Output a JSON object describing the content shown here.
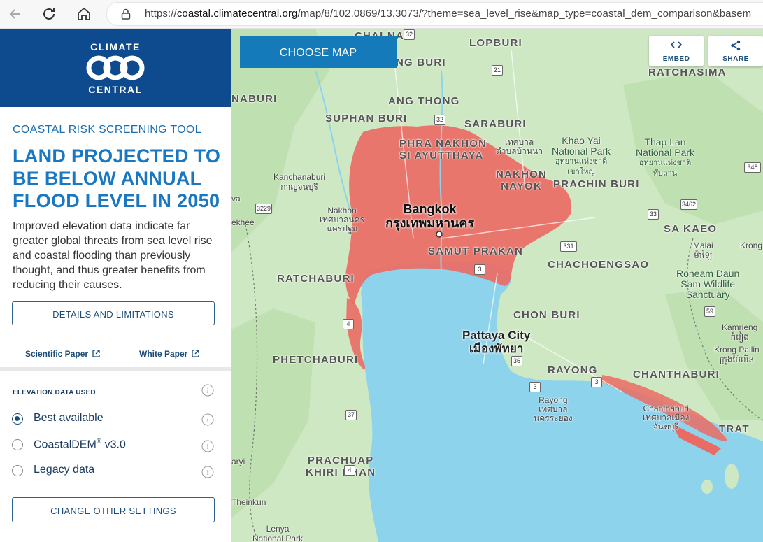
{
  "browser": {
    "url_host": "coastal.climatecentral.org",
    "url_prefix": "https://",
    "url_path": "/map/8/102.0869/13.3073/?theme=sea_level_rise&map_type=coastal_dem_comparison&basem"
  },
  "brand": {
    "line1": "CLIMATE",
    "line2": "CENTRAL"
  },
  "sidebar": {
    "tool_label": "COASTAL RISK SCREENING TOOL",
    "headline": "LAND PROJECTED TO BE BELOW ANNUAL FLOOD LEVEL IN 2050",
    "description": "Improved elevation data indicate far greater global threats from sea level rise and coastal flooding than previously thought, and thus greater benefits from reducing their causes.",
    "details_button": "DETAILS AND LIMITATIONS",
    "links": [
      "Scientific Paper",
      "White Paper"
    ],
    "elevation_label": "ELEVATION DATA USED",
    "options": [
      {
        "label": "Best available",
        "selected": true
      },
      {
        "label": "CoastalDEM",
        "sup": "®",
        "suffix": " v3.0",
        "selected": false
      },
      {
        "label": "Legacy data",
        "selected": false
      }
    ],
    "settings_button": "CHANGE OTHER SETTINGS"
  },
  "map": {
    "choose_map": "CHOOSE MAP",
    "embed": "EMBED",
    "share": "SHARE",
    "colors": {
      "land": "#cfe8c4",
      "water": "#8dd3ec",
      "flood": "#ea6b64",
      "accent": "#147ab9"
    },
    "labels": {
      "chainat": "CHAI NAT",
      "lopburi": "LOPBURI",
      "singburi": "NG BURI",
      "ratchasima": "RATCHASIMA",
      "naburi": "NABURI",
      "angthong": "ANG THONG",
      "suphanburi": "SUPHAN BURI",
      "saraburi": "SARABURI",
      "ayutthaya1": "PHRA NAKHON",
      "ayutthaya2": "SI AYUTTHAYA",
      "tessaban1": "เทศบาล",
      "tessaban2": "ตำบลบ้านนา",
      "khaoyai1": "Khao Yai",
      "khaoyai2": "National Park",
      "khaoyai3": "อุทยานแห่งชาติ",
      "khaoyai4": "เขาใหญ่",
      "thaplan1": "Thap Lan",
      "thaplan2": "National Park",
      "thaplan3": "อุทยานแห่งชาติ",
      "thaplan4": "ทับลาน",
      "nakhonnayok1": "NAKHON",
      "nakhonnayok2": "NAYOK",
      "prachinburi": "PRACHIN BURI",
      "kanchanaburi1": "Kanchanaburi",
      "kanchanaburi2": "กาญจนบุรี",
      "bangkok1": "Bangkok",
      "bangkok2": "กรุงเทพมหานคร",
      "nakhonpathom1": "Nakhon",
      "nakhonpathom2": "เทศบาลนคร",
      "nakhonpathom3": "นครปฐม",
      "samutprakan": "SAMUT PRAKAN",
      "sakaeo": "SA KAEO",
      "kekhee": "ekhee",
      "ava": "va",
      "malai1": "Malai",
      "malai2": "ម៉ាឡៃ",
      "krong1": "Krong",
      "chachoengsao": "CHACHOENGSAO",
      "ratchaburi": "RATCHABURI",
      "roneam1": "Roneam Daun",
      "roneam2": "Sam Wildlife",
      "roneam3": "Sanctuary",
      "chonburi": "CHON BURI",
      "kamrieng1": "Kamrieng",
      "kamrieng2": "កំរៀង",
      "pattaya1": "Pattaya City",
      "pattaya2": "เมืองพัทยา",
      "phetchaburi": "PHETCHABURI",
      "krongpailin1": "Krong Pailin",
      "krongpailin2": "ក្រុងប៉ៃលិន",
      "rayong": "RAYONG",
      "chanthaburi": "CHANTHABURI",
      "rayongtown1": "Rayong",
      "rayongtown2": "เทศบาล",
      "rayongtown3": "นครระยอง",
      "chanthtown1": "Chanthaburi",
      "chanthtown2": "เทศบาลเมือง",
      "chanthtown3": "จันทบุรี",
      "trat": "TRAT",
      "prachuap1": "PRACHUAP",
      "prachuap2": "KHIRI KHAN",
      "aryi": "aryi",
      "theinkun": "Theinkun",
      "lenya1": "Lenya",
      "lenya2": "National Park"
    },
    "shields": [
      "32",
      "21",
      "32",
      "348",
      "3229",
      "3462",
      "33",
      "331",
      "3",
      "4",
      "59",
      "36",
      "3",
      "3",
      "37",
      "4"
    ]
  }
}
